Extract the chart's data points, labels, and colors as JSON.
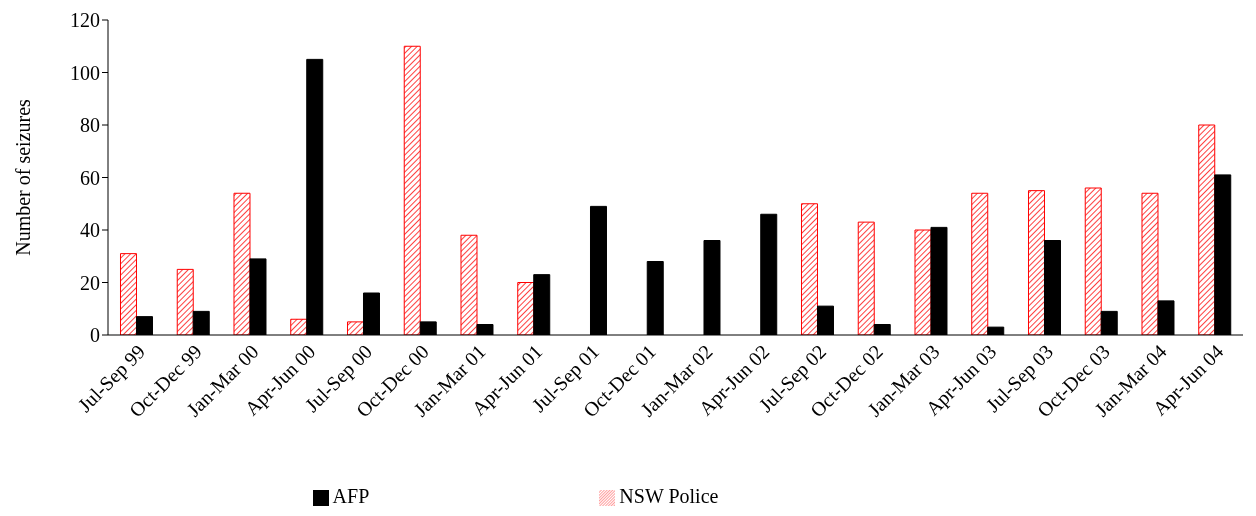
{
  "chart_data": {
    "type": "bar",
    "ylabel": "Number of seizures",
    "categories": [
      "Jul-Sep 99",
      "Oct-Dec 99",
      "Jan-Mar 00",
      "Apr-Jun 00",
      "Jul-Sep 00",
      "Oct-Dec 00",
      "Jan-Mar 01",
      "Apr-Jun 01",
      "Jul-Sep 01",
      "Oct-Dec 01",
      "Jan-Mar 02",
      "Apr-Jun 02",
      "Jul-Sep 02",
      "Oct-Dec 02",
      "Jan-Mar 03",
      "Apr-Jun 03",
      "Jul-Sep 03",
      "Oct-Dec 03",
      "Jan-Mar 04",
      "Apr-Jun 04"
    ],
    "series": [
      {
        "name": "NSW Police",
        "color": "#ff0000",
        "values": [
          31,
          25,
          54,
          6,
          5,
          110,
          38,
          20,
          0,
          0,
          0,
          0,
          50,
          43,
          40,
          54,
          55,
          56,
          54,
          80
        ]
      },
      {
        "name": "AFP",
        "color": "#000000",
        "values": [
          7,
          9,
          29,
          105,
          16,
          5,
          4,
          23,
          49,
          28,
          36,
          46,
          11,
          4,
          41,
          3,
          36,
          9,
          13,
          61
        ]
      }
    ],
    "ylim": [
      0,
      120
    ],
    "yticks": [
      0,
      20,
      40,
      60,
      80,
      100,
      120
    ],
    "grid": false,
    "legend": "bottom"
  }
}
